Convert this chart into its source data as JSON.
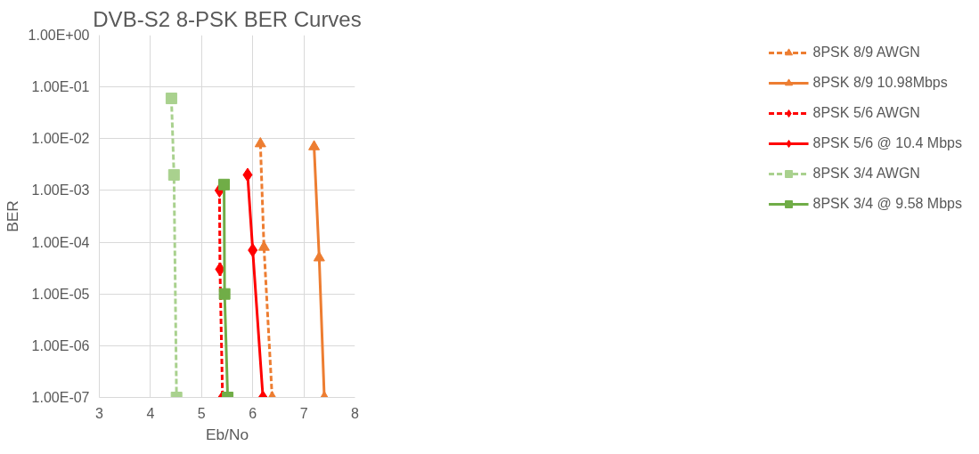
{
  "chart_data": {
    "type": "line",
    "title": "DVB-S2 8-PSK BER Curves",
    "xlabel": "Eb/No",
    "ylabel": "BER",
    "log": "y",
    "grid": true,
    "legend": "right",
    "xlim": [
      3,
      8
    ],
    "xticks": [
      3,
      4,
      5,
      6,
      7,
      8
    ],
    "ylim": [
      1e-07,
      1
    ],
    "yticks": [
      {
        "value": 1e-07,
        "label": "1.00E-07"
      },
      {
        "value": 1e-06,
        "label": "1.00E-06"
      },
      {
        "value": 1e-05,
        "label": "1.00E-05"
      },
      {
        "value": 0.0001,
        "label": "1.00E-04"
      },
      {
        "value": 0.001,
        "label": "1.00E-03"
      },
      {
        "value": 0.01,
        "label": "1.00E-02"
      },
      {
        "value": 0.1,
        "label": "1.00E-01"
      },
      {
        "value": 1,
        "label": "1.00E+00"
      }
    ],
    "series": [
      {
        "name": "8PSK 8/9 AWGN",
        "color": "#ed7d31",
        "marker": "triangle",
        "line_style": "dashed",
        "x": [
          6.15,
          6.22,
          6.38
        ],
        "values": [
          0.008,
          8e-05,
          1e-07
        ]
      },
      {
        "name": "8PSK 8/9 10.98Mbps",
        "color": "#ed7d31",
        "marker": "triangle",
        "line_style": "solid",
        "x": [
          7.2,
          7.3,
          7.4
        ],
        "values": [
          0.007,
          5e-05,
          1e-07
        ]
      },
      {
        "name": "8PSK 5/6 AWGN",
        "color": "#ff0000",
        "marker": "diamond",
        "line_style": "dashed",
        "x": [
          5.35,
          5.36,
          5.41
        ],
        "values": [
          0.001,
          3e-05,
          1e-07
        ]
      },
      {
        "name": "8PSK 5/6 @ 10.4 Mbps",
        "color": "#ff0000",
        "marker": "diamond",
        "line_style": "solid",
        "x": [
          5.9,
          6.0,
          6.2
        ],
        "values": [
          0.002,
          7e-05,
          1e-07
        ]
      },
      {
        "name": "8PSK 3/4 AWGN",
        "color": "#a9d18e",
        "marker": "square",
        "line_style": "dashed",
        "x": [
          4.41,
          4.46,
          4.51
        ],
        "values": [
          0.06,
          0.002,
          1e-07
        ]
      },
      {
        "name": "8PSK 3/4 @ 9.58 Mbps",
        "color": "#70ad47",
        "marker": "square",
        "line_style": "solid",
        "x": [
          5.44,
          5.45,
          5.51
        ],
        "values": [
          0.0013,
          1e-05,
          1e-07
        ]
      }
    ]
  }
}
